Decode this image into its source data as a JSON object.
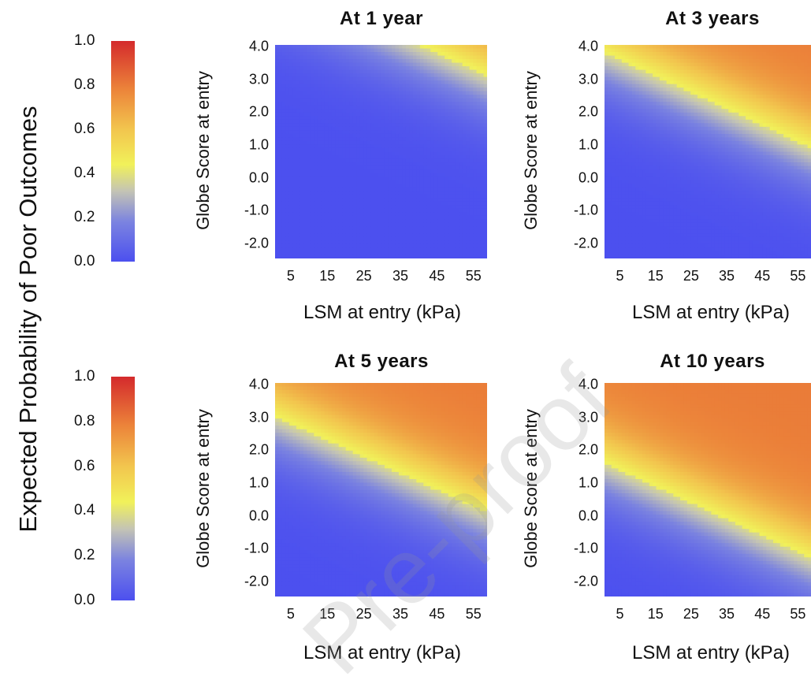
{
  "chart_data": {
    "type": "heatmap",
    "ylabel_main": "Expected Probability of Poor Outcomes",
    "colorbar": {
      "ticks": [
        "1.0",
        "0.8",
        "0.6",
        "0.4",
        "0.2",
        "0.0"
      ],
      "range": [
        0,
        1
      ]
    },
    "colorscale": [
      "#4c50ef",
      "#c4c4b4",
      "#f1f15a",
      "#ec843a",
      "#d42a2c"
    ],
    "panels": [
      {
        "title": "At 1 year",
        "xlabel": "LSM at entry (kPa)",
        "ylabel": "Globe Score at entry",
        "xticks": [
          "5",
          "15",
          "25",
          "35",
          "45",
          "55"
        ],
        "yticks": [
          "4.0",
          "3.0",
          "2.0",
          "1.0",
          "0.0",
          "-1.0",
          "-2.0"
        ],
        "xlim": [
          2,
          60
        ],
        "ylim": [
          -2.5,
          4.0
        ],
        "p50_y_at_x5": 5.8,
        "p50_slope": -0.05
      },
      {
        "title": "At 3 years",
        "xlabel": "LSM at entry (kPa)",
        "ylabel": "Globe Score at entry",
        "xticks": [
          "5",
          "15",
          "25",
          "35",
          "45",
          "55"
        ],
        "yticks": [
          "4.0",
          "3.0",
          "2.0",
          "1.0",
          "0.0",
          "-1.0",
          "-2.0"
        ],
        "xlim": [
          2,
          60
        ],
        "ylim": [
          -2.5,
          4.0
        ],
        "p50_y_at_x5": 3.6,
        "p50_slope": -0.05
      },
      {
        "title": "At 5 years",
        "xlabel": "LSM at entry (kPa)",
        "ylabel": "Globe Score at entry",
        "xticks": [
          "5",
          "15",
          "25",
          "35",
          "45",
          "55"
        ],
        "yticks": [
          "4.0",
          "3.0",
          "2.0",
          "1.0",
          "0.0",
          "-1.0",
          "-2.0"
        ],
        "xlim": [
          2,
          60
        ],
        "ylim": [
          -2.5,
          4.0
        ],
        "p50_y_at_x5": 2.8,
        "p50_slope": -0.05
      },
      {
        "title": "At 10 years",
        "xlabel": "LSM at entry (kPa)",
        "ylabel": "Globe Score at entry",
        "xticks": [
          "5",
          "15",
          "25",
          "35",
          "45",
          "55"
        ],
        "yticks": [
          "4.0",
          "3.0",
          "2.0",
          "1.0",
          "0.0",
          "-1.0",
          "-2.0"
        ],
        "xlim": [
          2,
          60
        ],
        "ylim": [
          -2.5,
          4.0
        ],
        "p50_y_at_x5": 1.4,
        "p50_slope": -0.05
      }
    ],
    "watermark": "Pre-proof"
  }
}
